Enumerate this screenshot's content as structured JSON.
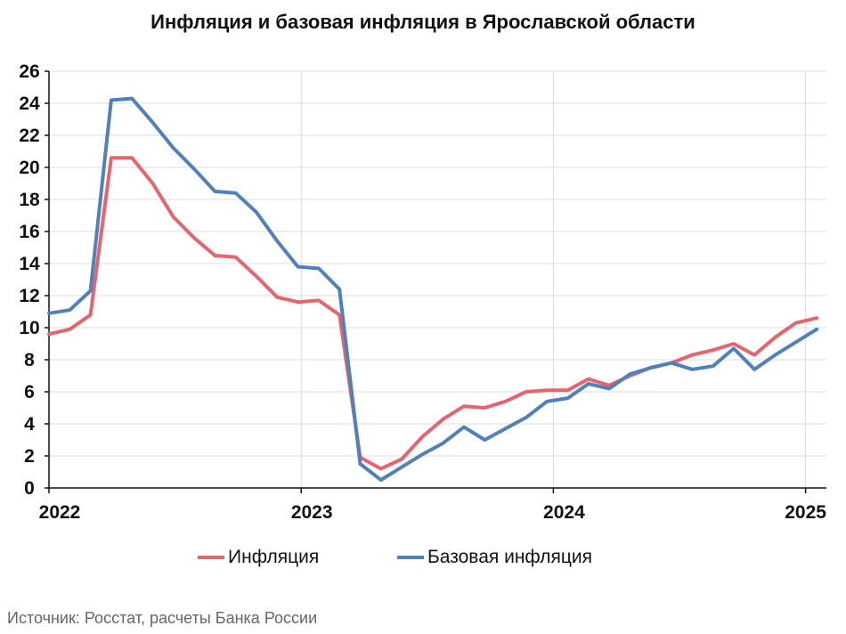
{
  "chart_data": {
    "type": "line",
    "title": "Инфляция и базовая инфляция в Ярославской области",
    "xlabel": "",
    "ylabel": "",
    "ylim": [
      0,
      26
    ],
    "yticks": [
      "0",
      "2",
      "4",
      "6",
      "8",
      "10",
      "12",
      "14",
      "16",
      "18",
      "20",
      "22",
      "24",
      "26"
    ],
    "xticks": [
      "2022",
      "2023",
      "2024",
      "2025"
    ],
    "x_start": "2022-01",
    "x_frequency": "monthly",
    "grid": true,
    "legend_position": "bottom",
    "series": [
      {
        "name": "Инфляция",
        "color": "#e8636b",
        "values": [
          9.6,
          9.9,
          10.8,
          20.6,
          20.6,
          19.0,
          16.9,
          15.6,
          14.5,
          14.4,
          13.2,
          11.9,
          11.6,
          11.7,
          10.8,
          1.9,
          1.2,
          1.8,
          3.2,
          4.3,
          5.1,
          5.0,
          5.4,
          6.0,
          6.1,
          6.1,
          6.8,
          6.4,
          7.0,
          7.5,
          7.8,
          8.3,
          8.6,
          9.0,
          8.3,
          9.4,
          10.3,
          10.6
        ]
      },
      {
        "name": "Базовая инфляция",
        "color": "#4f81bd",
        "values": [
          10.9,
          11.1,
          12.3,
          24.2,
          24.3,
          22.8,
          21.2,
          19.9,
          18.5,
          18.4,
          17.2,
          15.4,
          13.8,
          13.7,
          12.4,
          1.5,
          0.5,
          1.3,
          2.1,
          2.8,
          3.8,
          3.0,
          3.7,
          4.4,
          5.4,
          5.6,
          6.5,
          6.2,
          7.1,
          7.5,
          7.8,
          7.4,
          7.6,
          8.7,
          7.4,
          8.3,
          9.1,
          9.9
        ]
      }
    ]
  },
  "source": "Источник: Росстат, расчеты Банка России"
}
